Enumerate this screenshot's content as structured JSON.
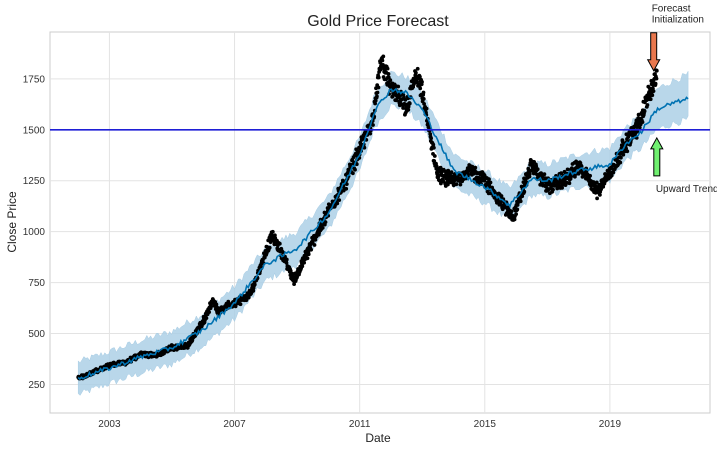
{
  "chart_data": {
    "type": "line",
    "title": "Gold Price Forecast",
    "xlabel": "Date",
    "ylabel": "Close Price",
    "xlim": [
      2001.1,
      2022.2
    ],
    "ylim": [
      110,
      1980
    ],
    "x_ticks": [
      2003,
      2007,
      2011,
      2015,
      2019
    ],
    "x_tick_labels": [
      "2003",
      "2007",
      "2011",
      "2015",
      "2019"
    ],
    "y_ticks": [
      250,
      500,
      750,
      1000,
      1250,
      1500,
      1750
    ],
    "y_tick_labels": [
      "250",
      "500",
      "750",
      "1000",
      "1250",
      "1500",
      "1750"
    ],
    "grid": true,
    "reference_line": {
      "y": 1500,
      "color": "#1f1fd6"
    },
    "colors": {
      "observed": "#000000",
      "trend": "#0072b2",
      "uncertainty": "#a8cde5",
      "forecast_arrow": "#e8774d",
      "trend_arrow": "#70f070"
    },
    "series": [
      {
        "kind": "observed-points",
        "x": [
          2002.0,
          2002.5,
          2003.0,
          2003.5,
          2004.0,
          2004.5,
          2005.0,
          2005.5,
          2006.0,
          2006.3,
          2006.5,
          2007.0,
          2007.5,
          2008.0,
          2008.2,
          2008.5,
          2008.9,
          2009.5,
          2010.0,
          2010.5,
          2011.0,
          2011.4,
          2011.7,
          2012.0,
          2012.5,
          2012.8,
          2013.0,
          2013.3,
          2013.5,
          2014.0,
          2014.5,
          2015.0,
          2015.5,
          2015.9,
          2016.5,
          2017.0,
          2017.5,
          2018.0,
          2018.6,
          2019.0,
          2019.5,
          2019.9,
          2020.2,
          2020.5
        ],
        "y": [
          280,
          310,
          345,
          355,
          400,
          395,
          430,
          440,
          560,
          660,
          610,
          650,
          690,
          900,
          980,
          900,
          760,
          950,
          1100,
          1230,
          1400,
          1540,
          1840,
          1700,
          1610,
          1770,
          1680,
          1430,
          1280,
          1250,
          1300,
          1250,
          1150,
          1070,
          1330,
          1220,
          1250,
          1320,
          1200,
          1290,
          1430,
          1520,
          1650,
          1780
        ]
      },
      {
        "kind": "trend-line",
        "x": [
          2002.0,
          2003.0,
          2004.0,
          2005.0,
          2006.0,
          2007.0,
          2008.0,
          2009.0,
          2010.0,
          2011.0,
          2011.5,
          2012.0,
          2012.5,
          2013.0,
          2013.5,
          2014.0,
          2015.0,
          2015.8,
          2016.5,
          2017.0,
          2018.0,
          2019.0,
          2019.5,
          2020.0,
          2020.5,
          2021.0,
          2021.5
        ],
        "y": [
          280,
          330,
          385,
          430,
          520,
          650,
          840,
          920,
          1090,
          1380,
          1600,
          1700,
          1680,
          1600,
          1450,
          1300,
          1220,
          1130,
          1260,
          1250,
          1300,
          1330,
          1430,
          1490,
          1600,
          1630,
          1650
        ]
      },
      {
        "kind": "uncertainty-band",
        "x": [
          2002.0,
          2003.0,
          2004.0,
          2005.0,
          2006.0,
          2007.0,
          2008.0,
          2009.0,
          2010.0,
          2011.0,
          2011.5,
          2012.0,
          2012.5,
          2013.0,
          2013.5,
          2014.0,
          2015.0,
          2015.8,
          2016.5,
          2017.0,
          2018.0,
          2019.0,
          2019.5,
          2020.0,
          2020.5,
          2021.0,
          2021.5
        ],
        "lower": [
          200,
          255,
          305,
          350,
          440,
          570,
          760,
          840,
          1010,
          1300,
          1520,
          1620,
          1600,
          1520,
          1370,
          1220,
          1140,
          1050,
          1180,
          1170,
          1220,
          1250,
          1350,
          1410,
          1500,
          1530,
          1550
        ],
        "upper": [
          360,
          410,
          465,
          510,
          600,
          730,
          920,
          1000,
          1170,
          1460,
          1680,
          1780,
          1760,
          1680,
          1530,
          1380,
          1300,
          1210,
          1340,
          1330,
          1380,
          1410,
          1510,
          1570,
          1700,
          1740,
          1770
        ]
      }
    ],
    "annotations": [
      {
        "text_lines": [
          "Forecast",
          " Initialization"
        ],
        "arrow": "down",
        "arrow_x": 2020.4,
        "arrow_tip_y": 1790,
        "text_anchor": "start"
      },
      {
        "text_lines": [
          "Upward Trend"
        ],
        "arrow": "up",
        "arrow_x": 2020.5,
        "arrow_tip_y": 1460,
        "text_anchor": "start"
      }
    ]
  }
}
